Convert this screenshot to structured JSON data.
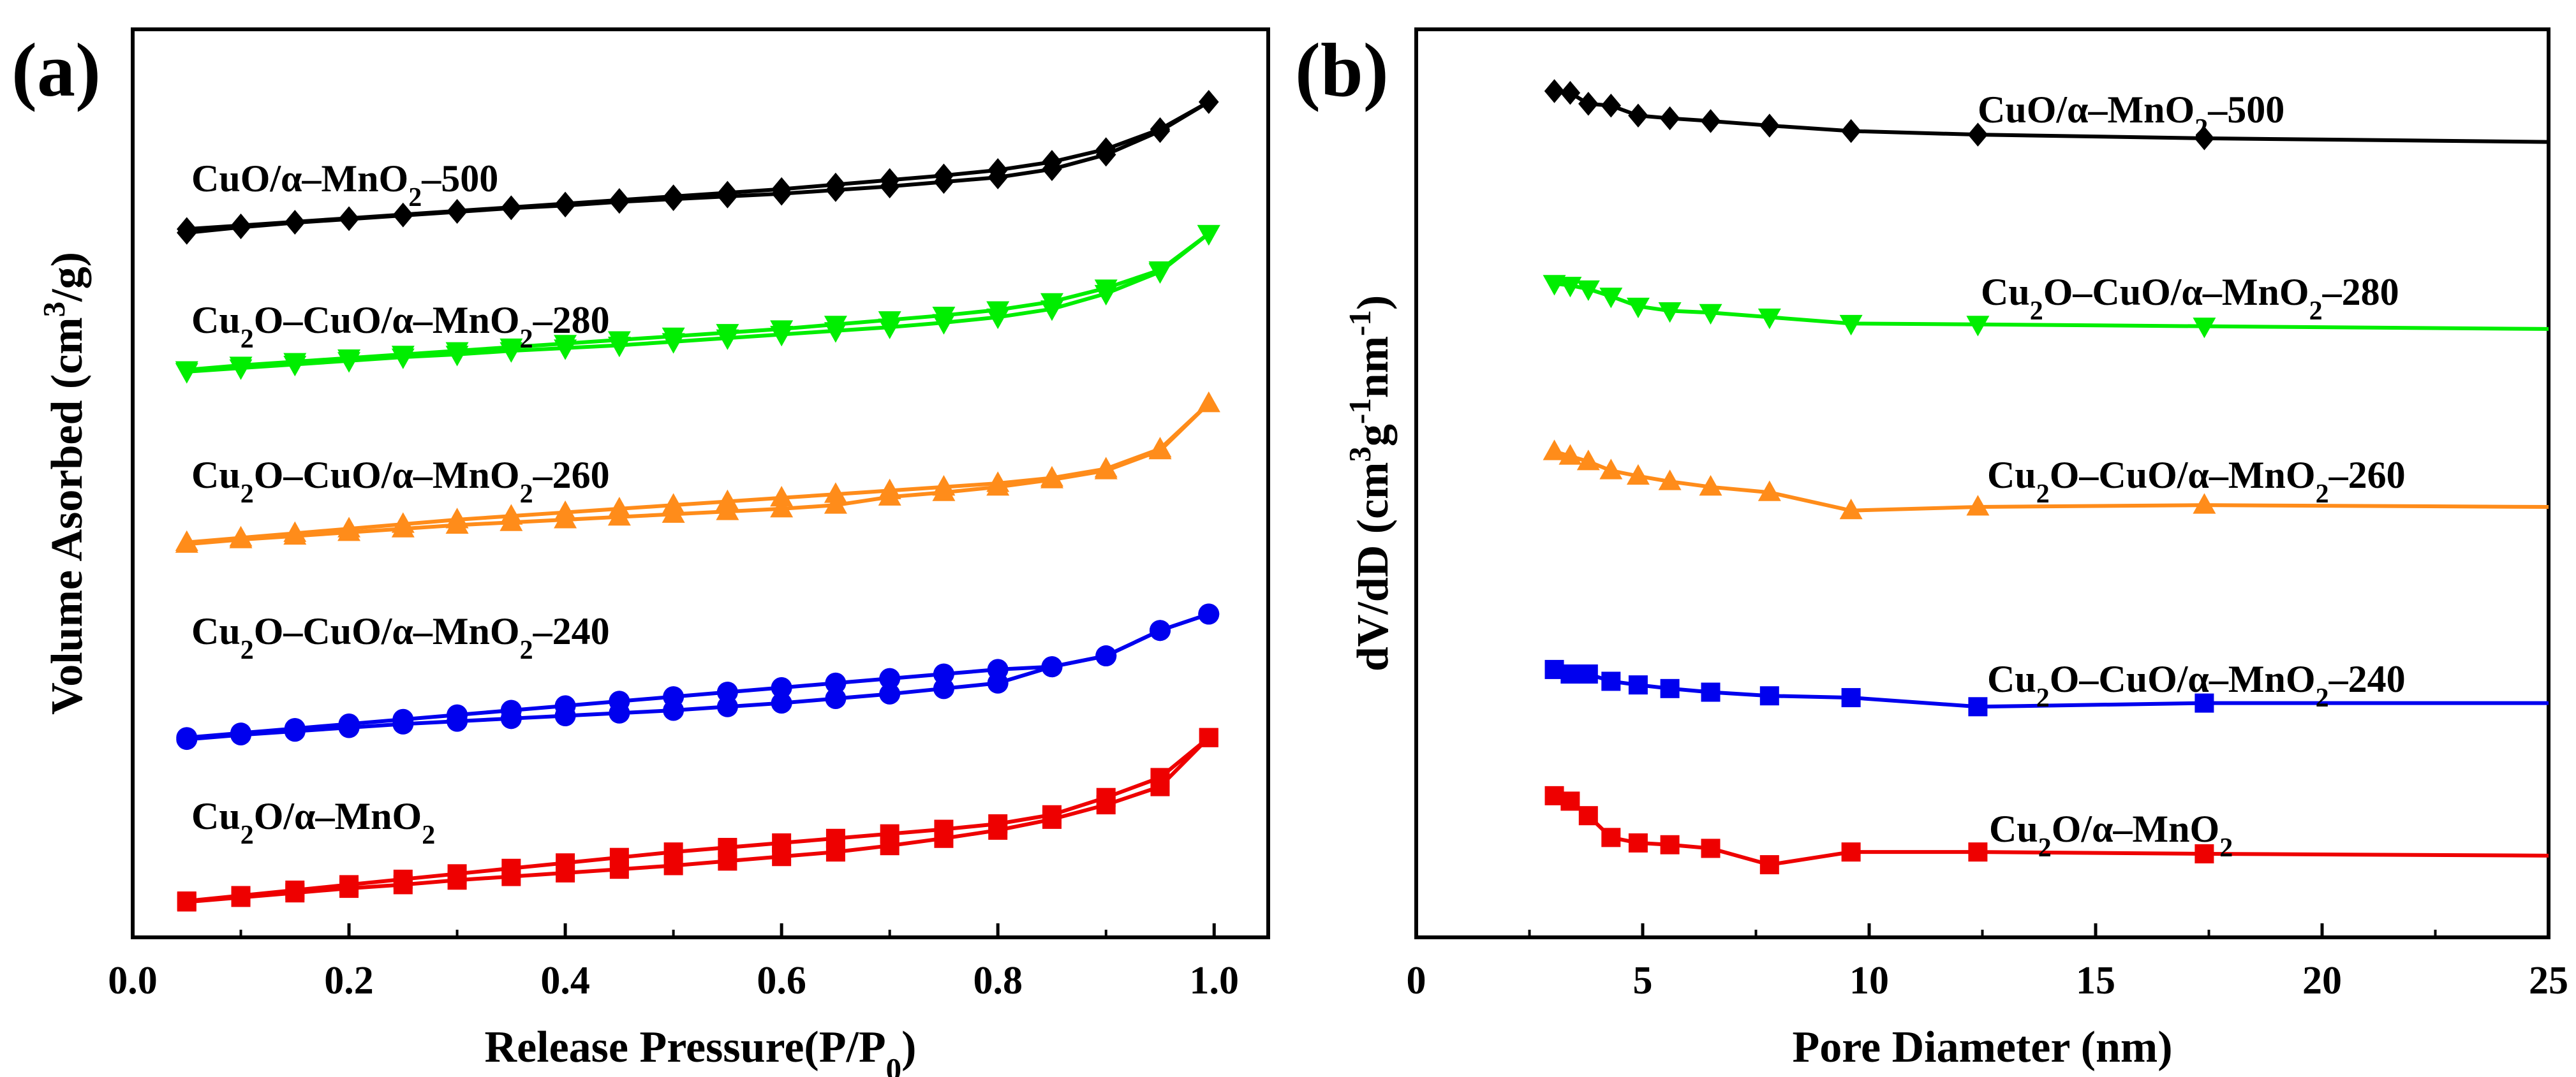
{
  "chart_data": [
    {
      "panel": "(a)",
      "type": "line",
      "xlabel": "Release Pressure(P/P0)",
      "xlabel_parts": [
        "Release Pressure(P/P",
        "0",
        ")"
      ],
      "ylabel": "Volume Asorbed (cm3/g)",
      "ylabel_parts": [
        "Volume Asorbed (cm",
        "3",
        "/g)"
      ],
      "xlim": [
        0.0,
        1.05
      ],
      "xticks": [
        "0.0",
        "0.2",
        "0.4",
        "0.6",
        "0.8",
        "1.0"
      ],
      "ylim": [
        0,
        100
      ],
      "yticks_shown": false,
      "series": [
        {
          "name": "CuO/α–MnO2–500",
          "name_parts": [
            "CuO/α–MnO",
            "2",
            "–500"
          ],
          "color": "#000000",
          "marker": "diamond",
          "x": [
            0.05,
            0.1,
            0.15,
            0.2,
            0.25,
            0.3,
            0.35,
            0.4,
            0.45,
            0.5,
            0.55,
            0.6,
            0.65,
            0.7,
            0.75,
            0.8,
            0.85,
            0.9,
            0.95,
            0.995
          ],
          "y": [
            78.0,
            78.4,
            78.8,
            79.2,
            79.6,
            80.0,
            80.4,
            80.8,
            81.2,
            81.6,
            82.0,
            82.4,
            82.9,
            83.4,
            83.9,
            84.5,
            85.4,
            86.8,
            89.0,
            92.0
          ],
          "y_branch2": [
            77.6,
            78.2,
            78.7,
            79.1,
            79.5,
            79.9,
            80.3,
            80.6,
            81.0,
            81.3,
            81.6,
            81.9,
            82.3,
            82.7,
            83.2,
            83.7,
            84.6,
            86.2,
            88.8,
            92.0
          ]
        },
        {
          "name": "Cu2O–CuO/α–MnO2–280",
          "name_parts": [
            "Cu",
            "2",
            "O–CuO/α–MnO",
            "2",
            "–280"
          ],
          "color": "#00ee00",
          "marker": "triangle-down",
          "x": [
            0.05,
            0.1,
            0.15,
            0.2,
            0.25,
            0.3,
            0.35,
            0.4,
            0.45,
            0.5,
            0.55,
            0.6,
            0.65,
            0.7,
            0.75,
            0.8,
            0.85,
            0.9,
            0.95,
            0.995
          ],
          "y": [
            62.5,
            63.0,
            63.4,
            63.8,
            64.2,
            64.6,
            65.0,
            65.4,
            65.8,
            66.2,
            66.6,
            67.0,
            67.5,
            68.0,
            68.5,
            69.1,
            70.0,
            71.5,
            73.5,
            77.5
          ],
          "y_branch2": [
            62.3,
            62.7,
            63.1,
            63.5,
            63.9,
            64.2,
            64.6,
            64.9,
            65.2,
            65.6,
            66.0,
            66.4,
            66.8,
            67.2,
            67.7,
            68.3,
            69.2,
            70.9,
            73.3,
            77.5
          ]
        },
        {
          "name": "Cu2O–CuO/α–MnO2–260",
          "name_parts": [
            "Cu",
            "2",
            "O–CuO/α–MnO",
            "2",
            "–260"
          ],
          "color": "#ff8c1a",
          "marker": "triangle-up",
          "x": [
            0.05,
            0.1,
            0.15,
            0.2,
            0.25,
            0.3,
            0.35,
            0.4,
            0.45,
            0.5,
            0.55,
            0.6,
            0.65,
            0.7,
            0.75,
            0.8,
            0.85,
            0.9,
            0.95,
            0.995
          ],
          "y": [
            43.5,
            44.0,
            44.5,
            45.0,
            45.5,
            46.0,
            46.4,
            46.8,
            47.2,
            47.6,
            48.0,
            48.4,
            48.8,
            49.2,
            49.6,
            50.0,
            50.6,
            51.6,
            53.8,
            58.8
          ],
          "y_branch2": [
            43.3,
            43.8,
            44.2,
            44.6,
            45.0,
            45.4,
            45.7,
            46.0,
            46.3,
            46.6,
            46.9,
            47.2,
            47.6,
            48.5,
            49.0,
            49.6,
            50.4,
            51.4,
            53.6,
            58.8
          ]
        },
        {
          "name": "Cu2O–CuO/α–MnO2–240",
          "name_parts": [
            "Cu",
            "2",
            "O–CuO/α–MnO",
            "2",
            "–240"
          ],
          "color": "#0000ee",
          "marker": "circle",
          "x": [
            0.05,
            0.1,
            0.15,
            0.2,
            0.25,
            0.3,
            0.35,
            0.4,
            0.45,
            0.5,
            0.55,
            0.6,
            0.65,
            0.7,
            0.75,
            0.8,
            0.85,
            0.9,
            0.95,
            0.995
          ],
          "y": [
            22.0,
            22.5,
            23.0,
            23.5,
            24.0,
            24.5,
            25.0,
            25.5,
            26.0,
            26.5,
            27.0,
            27.5,
            28.0,
            28.5,
            29.0,
            29.5,
            29.8,
            31.0,
            33.8,
            35.6
          ],
          "y_branch2": [
            21.8,
            22.3,
            22.7,
            23.1,
            23.5,
            23.8,
            24.1,
            24.4,
            24.7,
            25.0,
            25.4,
            25.8,
            26.3,
            26.8,
            27.4,
            28.0,
            29.8,
            31.0,
            33.8,
            35.6
          ]
        },
        {
          "name": "Cu2O/α–MnO2",
          "name_parts": [
            "Cu",
            "2",
            "O/α–MnO",
            "2"
          ],
          "color": "#ee0000",
          "marker": "square",
          "x": [
            0.05,
            0.1,
            0.15,
            0.2,
            0.25,
            0.3,
            0.35,
            0.4,
            0.45,
            0.5,
            0.55,
            0.6,
            0.65,
            0.7,
            0.75,
            0.8,
            0.85,
            0.9,
            0.95,
            0.995
          ],
          "y": [
            4.0,
            4.6,
            5.2,
            5.8,
            6.4,
            7.0,
            7.6,
            8.2,
            8.8,
            9.4,
            9.9,
            10.4,
            10.9,
            11.4,
            11.9,
            12.5,
            13.5,
            15.4,
            17.6,
            22.0
          ],
          "y_branch2": [
            3.9,
            4.4,
            4.9,
            5.4,
            5.8,
            6.3,
            6.7,
            7.1,
            7.5,
            7.9,
            8.4,
            8.9,
            9.4,
            10.1,
            10.9,
            11.8,
            13.0,
            14.6,
            16.6,
            22.0
          ]
        }
      ]
    },
    {
      "panel": "(b)",
      "type": "line",
      "xlabel": "Pore Diameter (nm)",
      "ylabel": "dV/dD (cm3g-1nm-1)",
      "ylabel_parts": [
        "dV/dD (cm",
        "3",
        "g",
        "-1",
        "nm",
        "-1",
        ")"
      ],
      "xlim": [
        0,
        25
      ],
      "xticks": [
        "0",
        "5",
        "10",
        "15",
        "20",
        "25"
      ],
      "ylim": [
        0,
        100
      ],
      "yticks_shown": false,
      "series": [
        {
          "name": "CuO/α–MnO2–500",
          "name_parts": [
            "CuO/α–MnO",
            "2",
            "–500"
          ],
          "color": "#000000",
          "marker": "diamond",
          "x": [
            3.05,
            3.4,
            3.8,
            4.3,
            4.9,
            5.6,
            6.5,
            7.8,
            9.6,
            12.4,
            17.4,
            25.0
          ],
          "y": [
            93.2,
            93.0,
            91.8,
            91.6,
            90.5,
            90.2,
            89.9,
            89.4,
            88.8,
            88.4,
            88.0,
            87.6
          ],
          "markers_to_index": 10
        },
        {
          "name": "Cu2O–CuO/α–MnO2–280",
          "name_parts": [
            "Cu",
            "2",
            "O–CuO/α–MnO",
            "2",
            "–280"
          ],
          "color": "#00ee00",
          "marker": "triangle-down",
          "x": [
            3.05,
            3.4,
            3.8,
            4.3,
            4.9,
            5.6,
            6.5,
            7.8,
            9.6,
            12.4,
            17.4,
            25.0
          ],
          "y": [
            72.0,
            71.8,
            71.4,
            70.6,
            69.5,
            69.0,
            68.8,
            68.3,
            67.6,
            67.5,
            67.3,
            67.0
          ],
          "markers_to_index": 10
        },
        {
          "name": "Cu2O–CuO/α–MnO2–260",
          "name_parts": [
            "Cu",
            "2",
            "O–CuO/α–MnO",
            "2",
            "–260"
          ],
          "color": "#ff8c1a",
          "marker": "triangle-up",
          "x": [
            3.05,
            3.4,
            3.8,
            4.3,
            4.9,
            5.6,
            6.5,
            7.8,
            9.6,
            12.4,
            17.4,
            25.0
          ],
          "y": [
            53.5,
            53.0,
            52.4,
            51.4,
            50.8,
            50.2,
            49.6,
            49.0,
            47.0,
            47.4,
            47.6,
            47.4
          ],
          "markers_to_index": 10
        },
        {
          "name": "Cu2O–CuO/α–MnO2–240",
          "name_parts": [
            "Cu",
            "2",
            "O–CuO/α–MnO",
            "2",
            "–240"
          ],
          "color": "#0000ee",
          "marker": "square",
          "x": [
            3.05,
            3.4,
            3.8,
            4.3,
            4.9,
            5.6,
            6.5,
            7.8,
            9.6,
            12.4,
            17.4,
            25.0
          ],
          "y": [
            29.5,
            29.0,
            29.0,
            28.2,
            27.8,
            27.4,
            27.0,
            26.6,
            26.4,
            25.4,
            25.8,
            25.8
          ],
          "markers_to_index": 10
        },
        {
          "name": "Cu2O/α–MnO2",
          "name_parts": [
            "Cu",
            "2",
            "O/α–MnO",
            "2"
          ],
          "color": "#ee0000",
          "marker": "square",
          "x": [
            3.05,
            3.4,
            3.8,
            4.3,
            4.9,
            5.6,
            6.5,
            7.8,
            9.6,
            12.4,
            17.4,
            25.0
          ],
          "y": [
            15.6,
            15.0,
            13.4,
            11.0,
            10.4,
            10.2,
            9.8,
            8.0,
            9.4,
            9.4,
            9.2,
            9.0
          ],
          "markers_to_index": 10
        }
      ]
    }
  ]
}
